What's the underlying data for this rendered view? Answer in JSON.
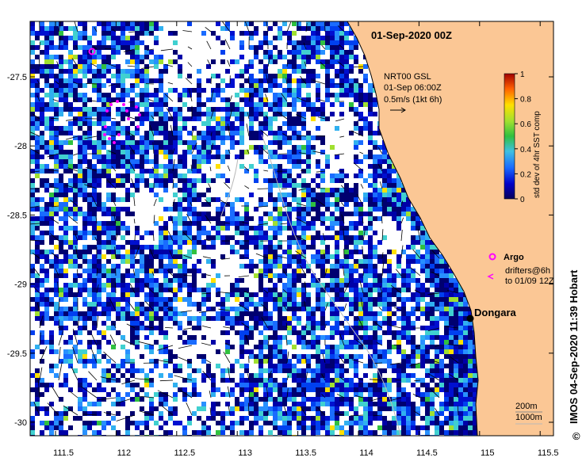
{
  "map": {
    "title": "01-Sep-2020 00Z",
    "current_info": [
      "NRT00 GSL",
      "01-Sep 06:00Z",
      "0.5m/s (1kt 6h)"
    ],
    "place": "Dongara",
    "legend": {
      "argo_label": "Argo",
      "drifters_label": [
        "drifters@6h",
        "to 01/09 12Z"
      ],
      "argo_color": "#ff00ff",
      "drifter_color": "#ff00ff"
    },
    "contours": [
      "200m",
      "1000m"
    ],
    "credit": "IMOS 04-Sep-2020 11:39 Hobart",
    "copyright": "©",
    "land_color": "#fbc795",
    "x_ticks": [
      "111.5",
      "112",
      "112.5",
      "113",
      "113.5",
      "114",
      "114.5",
      "115",
      "115.5"
    ],
    "y_ticks": [
      "-27.5",
      "-28",
      "-28.5",
      "-29",
      "-29.5",
      "-30"
    ],
    "colorbar": {
      "title": "std dev of 4hr SST comp",
      "ticks": [
        "0",
        "0.2",
        "0.4",
        "0.6",
        "0.8",
        "1"
      ],
      "range": [
        0,
        1
      ]
    }
  }
}
